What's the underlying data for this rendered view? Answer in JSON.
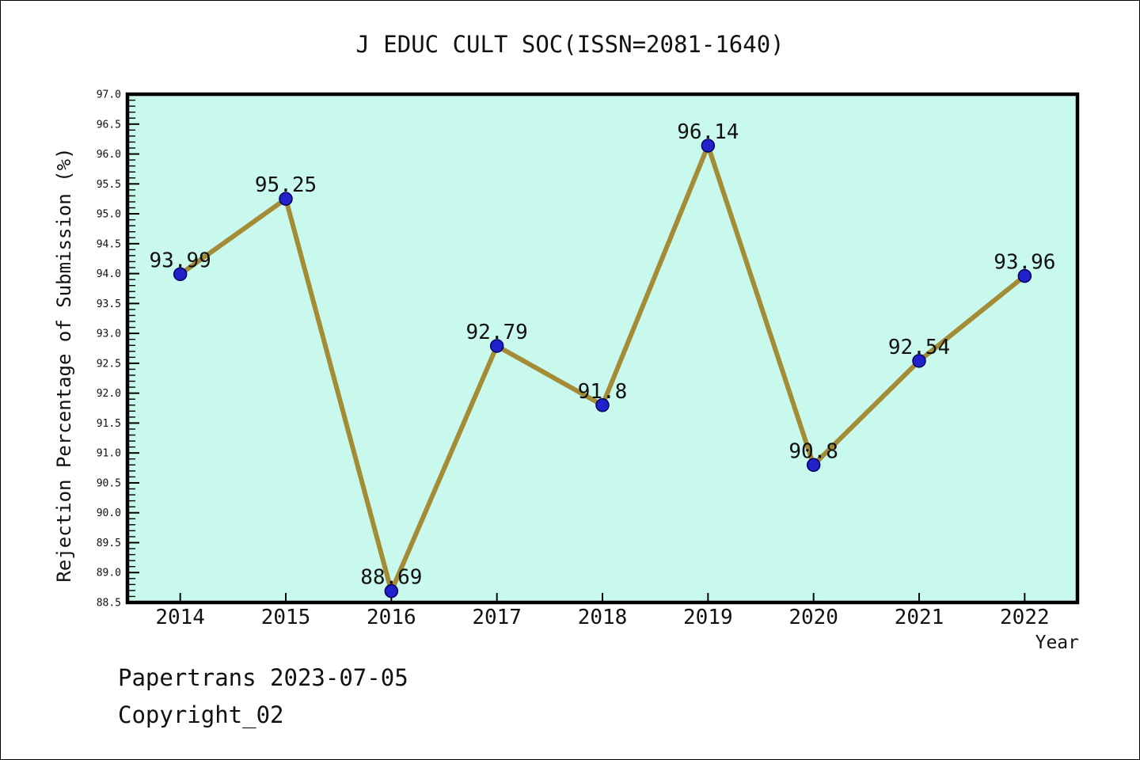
{
  "chart_data": {
    "type": "line",
    "title": "J EDUC CULT SOC(ISSN=2081-1640)",
    "xlabel": "Year",
    "ylabel": "Rejection Percentage of Submission (%)",
    "categories": [
      "2014",
      "2015",
      "2016",
      "2017",
      "2018",
      "2019",
      "2020",
      "2021",
      "2022"
    ],
    "values": [
      93.99,
      95.25,
      88.69,
      92.79,
      91.8,
      96.14,
      90.8,
      92.54,
      93.96
    ],
    "point_labels": [
      "93.99",
      "95.25",
      "88.69",
      "92.79",
      "91.8",
      "96.14",
      "90.8",
      "92.54",
      "93.96"
    ],
    "ylim": [
      88.5,
      97.0
    ],
    "y_major_step": 0.5,
    "y_minor_step": 0.1,
    "grid": false,
    "legend_position": "none",
    "colors": {
      "plot_bg": "#c9f9ec",
      "line": "#a38c35",
      "marker": "#2222cc",
      "marker_edge": "#000060",
      "axis": "#000000",
      "text": "#111111"
    }
  },
  "footer": {
    "line1": "Papertrans 2023-07-05",
    "line2": "Copyright_02"
  }
}
